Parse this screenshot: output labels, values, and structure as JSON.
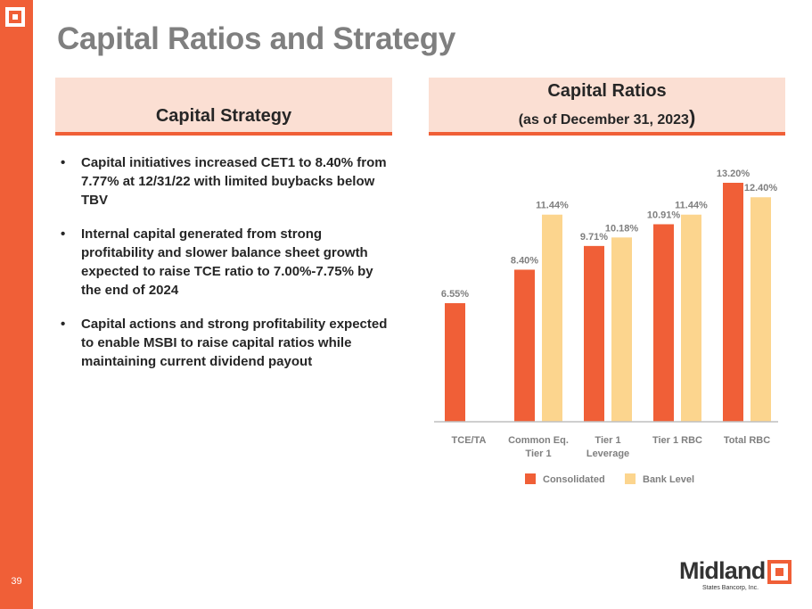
{
  "page": {
    "title": "Capital Ratios and Strategy",
    "page_number": "39"
  },
  "left_panel": {
    "header": "Capital Strategy",
    "bullet_glyph": "•",
    "bullets": [
      "Capital initiatives increased CET1 to 8.40% from 7.77% at 12/31/22 with limited buybacks below TBV",
      "Internal capital generated from strong profitability and slower balance sheet growth expected to raise TCE ratio to 7.00%-7.75% by the end of 2024",
      "Capital actions and strong profitability expected to enable MSBI to raise capital ratios while maintaining current dividend payout"
    ]
  },
  "right_panel": {
    "header_title": "Capital Ratios",
    "header_subtitle": "(as of December 31, 2023",
    "header_subtitle_close": ")"
  },
  "logo": {
    "wordmark": "Midland",
    "subtitle": "States Bancorp, Inc."
  },
  "colors": {
    "brand_orange": "#f05f37",
    "bank_level": "#fcd58e",
    "header_bg": "#fbdfd3",
    "title_gray": "#7f7f7f",
    "label_gray": "#7f7f7f"
  },
  "chart_data": {
    "type": "bar",
    "title": "Capital Ratios (as of December 31, 2023)",
    "xlabel": "",
    "ylabel": "",
    "ylim": [
      0,
      13.2
    ],
    "grid": false,
    "legend_position": "bottom",
    "categories": [
      [
        "TCE/TA"
      ],
      [
        "Common Eq.",
        "Tier 1"
      ],
      [
        "Tier 1",
        "Leverage"
      ],
      [
        "Tier 1 RBC"
      ],
      [
        "Total RBC"
      ]
    ],
    "series": [
      {
        "name": "Consolidated",
        "color": "#f05f37",
        "values": [
          6.55,
          8.4,
          9.71,
          10.91,
          13.2
        ],
        "labels": [
          "6.55%",
          "8.40%",
          "9.71%",
          "10.91%",
          "13.20%"
        ]
      },
      {
        "name": "Bank Level",
        "color": "#fcd58e",
        "values": [
          null,
          11.44,
          10.18,
          11.44,
          12.4
        ],
        "labels": [
          null,
          "11.44%",
          "10.18%",
          "11.44%",
          "12.40%"
        ]
      }
    ]
  }
}
